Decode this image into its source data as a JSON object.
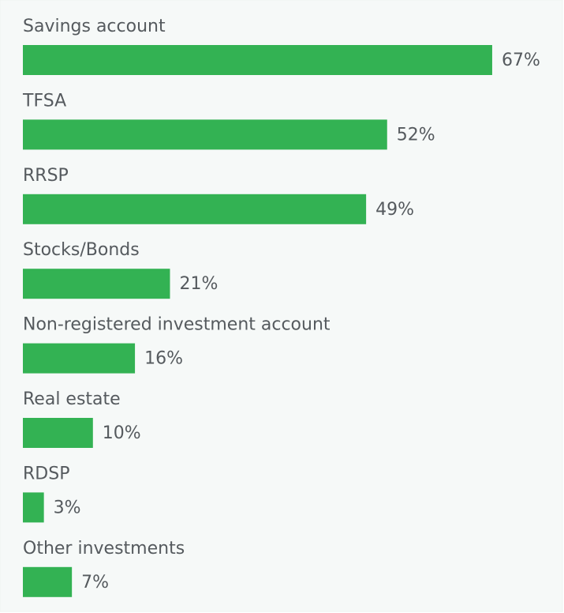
{
  "chart_data": {
    "type": "bar",
    "orientation": "horizontal",
    "color": "#33b253",
    "categories": [
      "Savings account",
      "TFSA",
      "RRSP",
      "Stocks/Bonds",
      "Non-registered investment account",
      "Real estate",
      "RDSP",
      "Other investments"
    ],
    "values": [
      67,
      52,
      49,
      21,
      16,
      10,
      3,
      7
    ],
    "value_labels": [
      "67%",
      "52%",
      "49%",
      "21%",
      "16%",
      "10%",
      "3%",
      "7%"
    ]
  }
}
